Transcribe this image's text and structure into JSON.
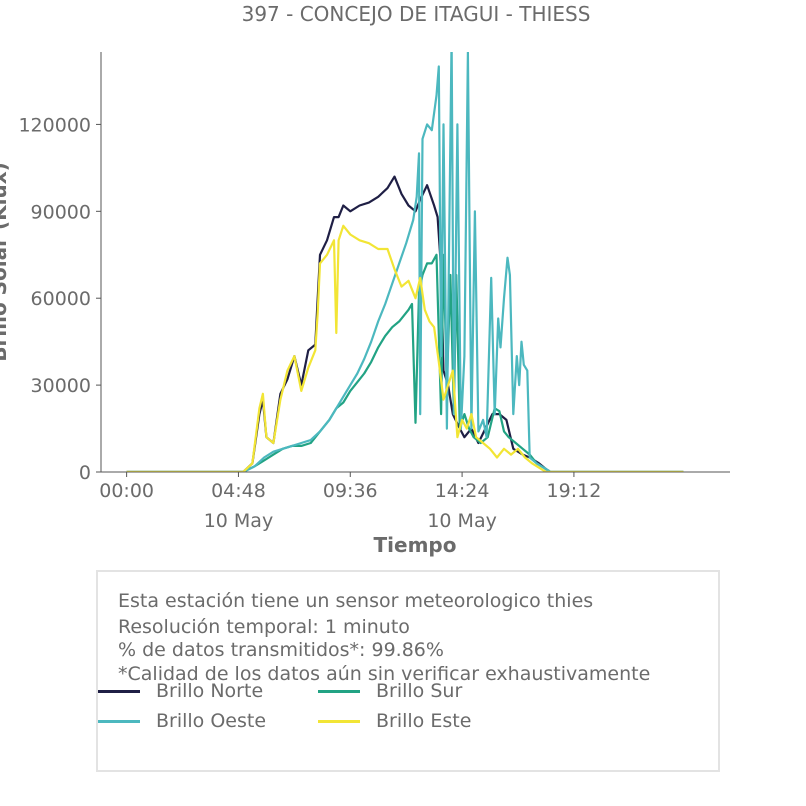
{
  "chart_data": {
    "type": "line",
    "title": "397 - CONCEJO DE ITAGUI - THIESS",
    "xlabel": "Tiempo",
    "ylabel": "Brillo Solar (Klux)",
    "ylim": [
      0,
      145000
    ],
    "xlim_hours": [
      -1.1,
      25.9
    ],
    "yticks": [
      0,
      30000,
      60000,
      90000,
      120000
    ],
    "ytick_labels": [
      "0",
      "30000",
      "60000",
      "90000",
      "120000"
    ],
    "xticks_hours": [
      0,
      4.8,
      9.6,
      14.4,
      19.2
    ],
    "xtick_labels": [
      "00:00",
      "04:48",
      "09:36",
      "14:24",
      "19:12"
    ],
    "xtick_sublabels": [
      "",
      "10 May",
      "",
      "10 May",
      ""
    ],
    "grid": false,
    "legend_position": "bottom",
    "series": [
      {
        "name": "Brillo Norte",
        "color": "#1f1f45",
        "points": [
          [
            0,
            0
          ],
          [
            5,
            0
          ],
          [
            5.4,
            3000
          ],
          [
            5.7,
            20000
          ],
          [
            5.85,
            25000
          ],
          [
            6.0,
            12000
          ],
          [
            6.3,
            10000
          ],
          [
            6.6,
            27000
          ],
          [
            6.9,
            32000
          ],
          [
            7.2,
            40000
          ],
          [
            7.5,
            30000
          ],
          [
            7.8,
            42000
          ],
          [
            8.1,
            44000
          ],
          [
            8.2,
            60000
          ],
          [
            8.3,
            75000
          ],
          [
            8.6,
            80000
          ],
          [
            8.9,
            88000
          ],
          [
            9.1,
            88000
          ],
          [
            9.3,
            92000
          ],
          [
            9.6,
            90000
          ],
          [
            10.0,
            92000
          ],
          [
            10.4,
            93000
          ],
          [
            10.8,
            95000
          ],
          [
            11.2,
            98000
          ],
          [
            11.5,
            102000
          ],
          [
            11.8,
            96000
          ],
          [
            12.1,
            92000
          ],
          [
            12.4,
            90000
          ],
          [
            12.6,
            94000
          ],
          [
            12.9,
            99000
          ],
          [
            13.2,
            92000
          ],
          [
            13.35,
            88000
          ],
          [
            13.5,
            70000
          ],
          [
            13.6,
            35000
          ],
          [
            13.8,
            30000
          ],
          [
            14.0,
            20000
          ],
          [
            14.3,
            15000
          ],
          [
            14.5,
            12000
          ],
          [
            14.8,
            15000
          ],
          [
            15.1,
            10000
          ],
          [
            15.4,
            15000
          ],
          [
            15.7,
            20000
          ],
          [
            16.0,
            20000
          ],
          [
            16.3,
            18000
          ],
          [
            16.6,
            8000
          ],
          [
            17.0,
            6000
          ],
          [
            17.3,
            5000
          ],
          [
            17.7,
            3000
          ],
          [
            18.0,
            1000
          ],
          [
            18.2,
            0
          ],
          [
            23.9,
            0
          ]
        ]
      },
      {
        "name": "Brillo Sur",
        "color": "#22a384",
        "points": [
          [
            0,
            0
          ],
          [
            5,
            0
          ],
          [
            5.5,
            2000
          ],
          [
            5.9,
            4000
          ],
          [
            6.3,
            6000
          ],
          [
            6.7,
            8000
          ],
          [
            7.1,
            9000
          ],
          [
            7.5,
            9000
          ],
          [
            7.9,
            10000
          ],
          [
            8.3,
            14000
          ],
          [
            8.7,
            18000
          ],
          [
            9.0,
            22000
          ],
          [
            9.3,
            24000
          ],
          [
            9.6,
            28000
          ],
          [
            9.9,
            31000
          ],
          [
            10.2,
            34000
          ],
          [
            10.5,
            38000
          ],
          [
            10.8,
            43000
          ],
          [
            11.1,
            47000
          ],
          [
            11.4,
            50000
          ],
          [
            11.7,
            52000
          ],
          [
            11.9,
            54000
          ],
          [
            12.1,
            56000
          ],
          [
            12.25,
            58000
          ],
          [
            12.4,
            17000
          ],
          [
            12.55,
            62000
          ],
          [
            12.7,
            68000
          ],
          [
            12.9,
            72000
          ],
          [
            13.1,
            72000
          ],
          [
            13.3,
            75000
          ],
          [
            13.5,
            20000
          ],
          [
            13.6,
            75000
          ],
          [
            13.75,
            30000
          ],
          [
            13.9,
            68000
          ],
          [
            14.05,
            20000
          ],
          [
            14.15,
            68000
          ],
          [
            14.3,
            15000
          ],
          [
            14.5,
            20000
          ],
          [
            14.7,
            15000
          ],
          [
            14.9,
            12000
          ],
          [
            15.2,
            10000
          ],
          [
            15.5,
            12000
          ],
          [
            15.8,
            22000
          ],
          [
            16.0,
            21000
          ],
          [
            16.2,
            14000
          ],
          [
            16.4,
            12000
          ],
          [
            16.7,
            10000
          ],
          [
            17.0,
            8000
          ],
          [
            17.3,
            6000
          ],
          [
            17.6,
            3000
          ],
          [
            18.0,
            1000
          ],
          [
            18.2,
            0
          ],
          [
            23.9,
            0
          ]
        ]
      },
      {
        "name": "Brillo Oeste",
        "color": "#4cb8bf",
        "points": [
          [
            0,
            0
          ],
          [
            5,
            0
          ],
          [
            5.5,
            2000
          ],
          [
            5.9,
            5000
          ],
          [
            6.3,
            7000
          ],
          [
            6.7,
            8000
          ],
          [
            7.1,
            9000
          ],
          [
            7.5,
            10000
          ],
          [
            7.9,
            11000
          ],
          [
            8.3,
            14000
          ],
          [
            8.7,
            18000
          ],
          [
            9.0,
            22000
          ],
          [
            9.3,
            26000
          ],
          [
            9.6,
            30000
          ],
          [
            9.9,
            34000
          ],
          [
            10.2,
            39000
          ],
          [
            10.5,
            45000
          ],
          [
            10.8,
            52000
          ],
          [
            11.1,
            58000
          ],
          [
            11.4,
            65000
          ],
          [
            11.7,
            72000
          ],
          [
            12.0,
            79000
          ],
          [
            12.3,
            87000
          ],
          [
            12.45,
            95000
          ],
          [
            12.55,
            110000
          ],
          [
            12.6,
            20000
          ],
          [
            12.7,
            115000
          ],
          [
            12.9,
            120000
          ],
          [
            13.1,
            118000
          ],
          [
            13.3,
            130000
          ],
          [
            13.4,
            140000
          ],
          [
            13.5,
            40000
          ],
          [
            13.6,
            120000
          ],
          [
            13.75,
            15000
          ],
          [
            13.95,
            150000
          ],
          [
            14.05,
            20000
          ],
          [
            14.2,
            120000
          ],
          [
            14.35,
            15000
          ],
          [
            14.5,
            40000
          ],
          [
            14.65,
            145000
          ],
          [
            14.8,
            15000
          ],
          [
            14.95,
            90000
          ],
          [
            15.1,
            14000
          ],
          [
            15.3,
            18000
          ],
          [
            15.45,
            12000
          ],
          [
            15.65,
            67000
          ],
          [
            15.8,
            20000
          ],
          [
            15.95,
            53000
          ],
          [
            16.05,
            43000
          ],
          [
            16.2,
            60000
          ],
          [
            16.35,
            74000
          ],
          [
            16.45,
            68000
          ],
          [
            16.6,
            20000
          ],
          [
            16.75,
            40000
          ],
          [
            16.85,
            30000
          ],
          [
            16.95,
            45000
          ],
          [
            17.05,
            37000
          ],
          [
            17.2,
            35000
          ],
          [
            17.3,
            5000
          ],
          [
            17.6,
            3000
          ],
          [
            18.0,
            1000
          ],
          [
            18.2,
            0
          ],
          [
            23.9,
            0
          ]
        ]
      },
      {
        "name": "Brillo Este",
        "color": "#f2e535",
        "points": [
          [
            0,
            0
          ],
          [
            5,
            0
          ],
          [
            5.4,
            3000
          ],
          [
            5.7,
            22000
          ],
          [
            5.85,
            27000
          ],
          [
            6.0,
            12000
          ],
          [
            6.3,
            10000
          ],
          [
            6.6,
            25000
          ],
          [
            6.9,
            35000
          ],
          [
            7.2,
            40000
          ],
          [
            7.5,
            28000
          ],
          [
            7.8,
            36000
          ],
          [
            8.1,
            42000
          ],
          [
            8.2,
            55000
          ],
          [
            8.3,
            72000
          ],
          [
            8.6,
            75000
          ],
          [
            8.9,
            80000
          ],
          [
            9.0,
            48000
          ],
          [
            9.1,
            80000
          ],
          [
            9.3,
            85000
          ],
          [
            9.6,
            82000
          ],
          [
            10.0,
            80000
          ],
          [
            10.4,
            79000
          ],
          [
            10.8,
            77000
          ],
          [
            11.2,
            77000
          ],
          [
            11.5,
            70000
          ],
          [
            11.8,
            64000
          ],
          [
            12.1,
            66000
          ],
          [
            12.4,
            60000
          ],
          [
            12.6,
            67000
          ],
          [
            12.8,
            56000
          ],
          [
            13.0,
            52000
          ],
          [
            13.2,
            50000
          ],
          [
            13.4,
            38000
          ],
          [
            13.6,
            25000
          ],
          [
            13.8,
            30000
          ],
          [
            14.0,
            35000
          ],
          [
            14.2,
            12000
          ],
          [
            14.4,
            18000
          ],
          [
            14.6,
            15000
          ],
          [
            14.8,
            20000
          ],
          [
            15.0,
            12000
          ],
          [
            15.3,
            10000
          ],
          [
            15.6,
            8000
          ],
          [
            15.9,
            5000
          ],
          [
            16.2,
            8000
          ],
          [
            16.5,
            6000
          ],
          [
            16.8,
            8000
          ],
          [
            17.1,
            5000
          ],
          [
            17.4,
            3000
          ],
          [
            17.8,
            1000
          ],
          [
            18.0,
            0
          ],
          [
            23.9,
            0
          ]
        ]
      }
    ]
  },
  "info": {
    "line1": "Esta estación tiene un sensor meteorologico thies",
    "line2": "Resolución temporal: 1 minuto",
    "line3": "% de datos transmitidos*: 99.86%",
    "line4": "*Calidad de los datos aún sin verificar exhaustivamente"
  },
  "legend": {
    "norte": "Brillo Norte",
    "sur": "Brillo Sur",
    "oeste": "Brillo Oeste",
    "este": "Brillo Este"
  }
}
